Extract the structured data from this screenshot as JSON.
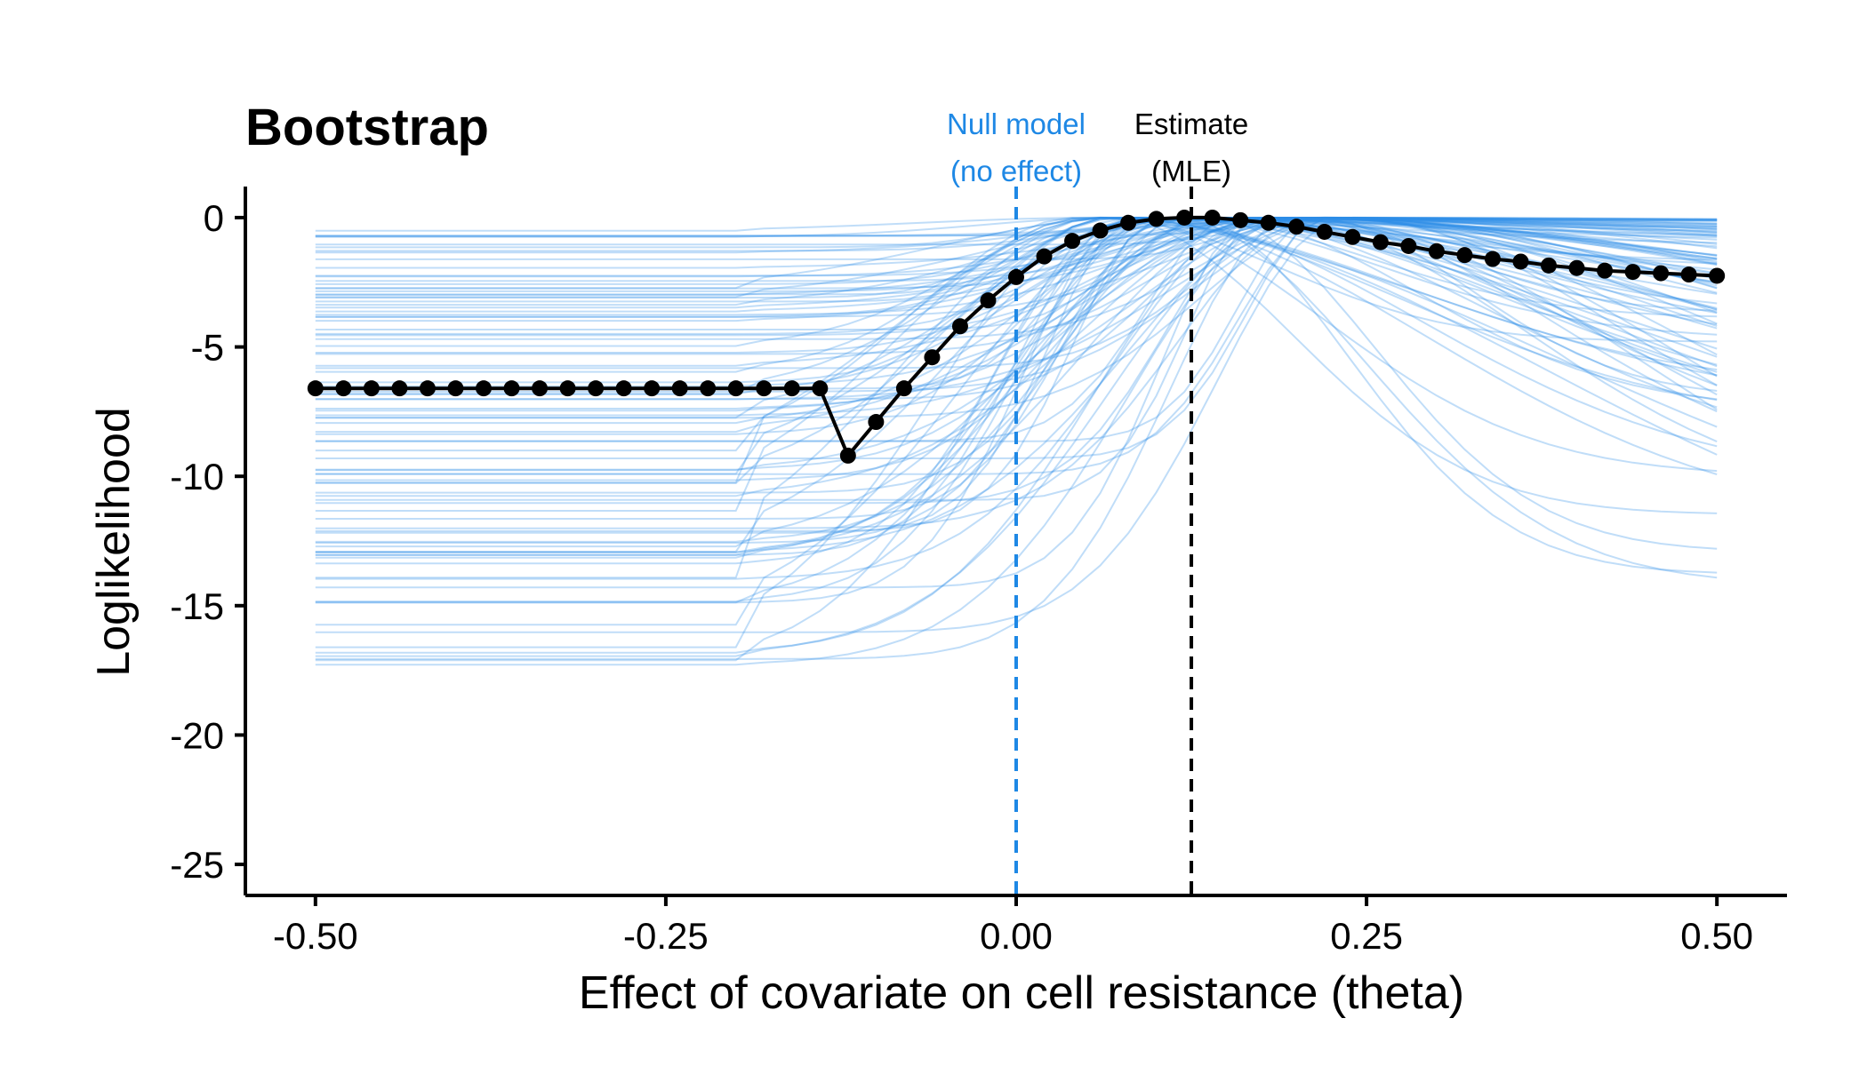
{
  "chart_data": {
    "type": "line",
    "title": "Bootstrap",
    "xlabel": "Effect of covariate on cell resistance (theta)",
    "ylabel": "Loglikelihood",
    "xlim": [
      -0.55,
      0.55
    ],
    "ylim": [
      -26.2,
      1.2
    ],
    "x_ticks": [
      -0.5,
      -0.25,
      0.0,
      0.25,
      0.5
    ],
    "x_tick_labels": [
      "-0.50",
      "-0.25",
      "0.00",
      "0.25",
      "0.50"
    ],
    "y_ticks": [
      0,
      -5,
      -10,
      -15,
      -20,
      -25
    ],
    "y_tick_labels": [
      "0",
      "-5",
      "-10",
      "-15",
      "-20",
      "-25"
    ],
    "grid": false,
    "colors": {
      "bootstrap": "#2f8ee8",
      "main": "#000000",
      "null_line": "#1e88e5",
      "estimate_line": "#000000"
    },
    "annotations": [
      {
        "id": "null",
        "x": 0.0,
        "line1": "Null model",
        "line2": "(no effect)",
        "color": "#1e88e5"
      },
      {
        "id": "estimate",
        "x": 0.125,
        "line1": "Estimate",
        "line2": "(MLE)",
        "color": "#000000"
      }
    ],
    "main_series": {
      "x": [
        -0.5,
        -0.48,
        -0.46,
        -0.44,
        -0.42,
        -0.4,
        -0.38,
        -0.36,
        -0.34,
        -0.32,
        -0.3,
        -0.28,
        -0.26,
        -0.24,
        -0.22,
        -0.2,
        -0.18,
        -0.16,
        -0.14,
        -0.12,
        -0.1,
        -0.08,
        -0.06,
        -0.04,
        -0.02,
        0.0,
        0.02,
        0.04,
        0.06,
        0.08,
        0.1,
        0.12,
        0.14,
        0.16,
        0.18,
        0.2,
        0.22,
        0.24,
        0.26,
        0.28,
        0.3,
        0.32,
        0.34,
        0.36,
        0.38,
        0.4,
        0.42,
        0.44,
        0.46,
        0.48,
        0.5
      ],
      "y": [
        -6.6,
        -6.6,
        -6.6,
        -6.6,
        -6.6,
        -6.6,
        -6.6,
        -6.6,
        -6.6,
        -6.6,
        -6.6,
        -6.6,
        -6.6,
        -6.6,
        -6.6,
        -6.6,
        -6.6,
        -6.6,
        -6.6,
        -9.2,
        -7.9,
        -6.6,
        -5.4,
        -4.2,
        -3.2,
        -2.3,
        -1.5,
        -0.9,
        -0.5,
        -0.2,
        -0.05,
        0.0,
        0.0,
        -0.1,
        -0.2,
        -0.35,
        -0.55,
        -0.75,
        -0.95,
        -1.1,
        -1.3,
        -1.45,
        -1.6,
        -1.7,
        -1.85,
        -1.95,
        -2.05,
        -2.1,
        -2.15,
        -2.2,
        -2.25
      ]
    },
    "bootstrap_series_count": 100
  }
}
